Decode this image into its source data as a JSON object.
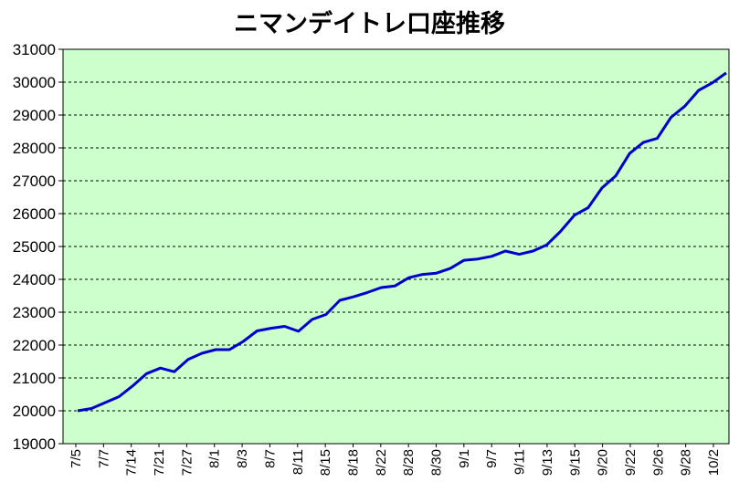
{
  "chart_data": {
    "type": "line",
    "title": "ニマンデイトレ口座推移",
    "xlabel": "",
    "ylabel": "",
    "ylim": [
      19000,
      31000
    ],
    "yticks": [
      19000,
      20000,
      21000,
      22000,
      23000,
      24000,
      25000,
      26000,
      27000,
      28000,
      29000,
      30000,
      31000
    ],
    "grid": true,
    "legend": "none",
    "plot_background": "#ccffcc",
    "line_color": "#0000cc",
    "x_tick_labels": [
      "7/5",
      "7/7",
      "7/14",
      "7/21",
      "7/27",
      "8/1",
      "8/3",
      "8/7",
      "8/11",
      "8/15",
      "8/18",
      "8/22",
      "8/28",
      "8/30",
      "9/1",
      "9/7",
      "9/11",
      "9/13",
      "9/15",
      "9/20",
      "9/22",
      "9/26",
      "9/28",
      "10/2"
    ],
    "series": [
      {
        "values": [
          20000,
          20070,
          20250,
          20430,
          20760,
          21130,
          21300,
          21190,
          21560,
          21750,
          21860,
          21860,
          22110,
          22430,
          22510,
          22570,
          22420,
          22780,
          22930,
          23360,
          23470,
          23600,
          23750,
          23800,
          24050,
          24150,
          24190,
          24330,
          24580,
          24620,
          24700,
          24860,
          24760,
          24860,
          25050,
          25460,
          25950,
          26180,
          26780,
          27150,
          27830,
          28170,
          28290,
          28930,
          29270,
          29750,
          29980,
          30280
        ]
      }
    ]
  }
}
